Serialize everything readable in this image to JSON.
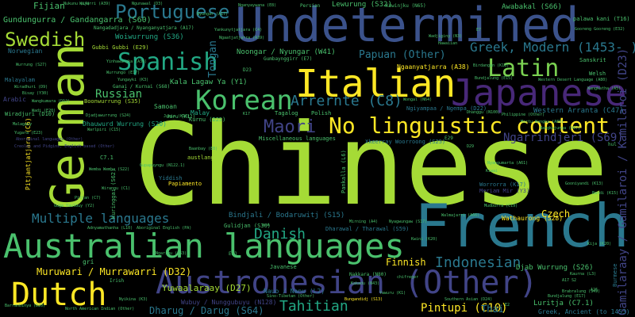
{
  "words": [
    {
      "id": "chinese",
      "text": "Chinese",
      "color": "#a5db36"
    },
    {
      "id": "french",
      "text": "French",
      "color": "#2a788e"
    },
    {
      "id": "undetermined",
      "text": "Undetermined",
      "color": "#3b528b"
    },
    {
      "id": "german",
      "text": "German",
      "color": "#a5db36"
    },
    {
      "id": "italian",
      "text": "Italian",
      "color": "#fde725"
    },
    {
      "id": "japanese",
      "text": "Japanese",
      "color": "#482878"
    },
    {
      "id": "australian",
      "text": "Australian languages",
      "color": "#4ac16d"
    },
    {
      "id": "austronesian",
      "text": "Austronesian (Other)",
      "color": "#414487"
    },
    {
      "id": "dutch",
      "text": "Dutch",
      "color": "#fde725"
    },
    {
      "id": "korean",
      "text": "Korean",
      "color": "#4ac16d"
    },
    {
      "id": "spanish",
      "text": "Spanish",
      "color": "#22a884"
    },
    {
      "id": "nolingu",
      "text": "No linguistic content",
      "color": "#fde725"
    },
    {
      "id": "latin",
      "text": "Latin",
      "color": "#7ad151"
    },
    {
      "id": "swedish",
      "text": "Swedish",
      "color": "#a5db36"
    },
    {
      "id": "portuguese",
      "text": "Portuguese",
      "color": "#2a788e"
    },
    {
      "id": "arrernte",
      "text": "Arrernte (C8)",
      "color": "#2a788e"
    },
    {
      "id": "maori",
      "text": "Maori",
      "color": "#414487"
    },
    {
      "id": "greek",
      "text": "Greek, Modern (1453- )",
      "color": "#2a788e"
    },
    {
      "id": "danish",
      "text": "Danish",
      "color": "#22a884"
    },
    {
      "id": "indonesian",
      "text": "Indonesian",
      "color": "#2a788e"
    },
    {
      "id": "tahitian",
      "text": "Tahitian",
      "color": "#22a884"
    },
    {
      "id": "multiple",
      "text": "Multiple languages",
      "color": "#2a788e"
    },
    {
      "id": "pintupi",
      "text": "Pintupi (C10)",
      "color": "#fde725"
    },
    {
      "id": "papuan",
      "text": "Papuan (Other)",
      "color": "#2a788e"
    },
    {
      "id": "russian",
      "text": "Russian",
      "color": "#4ac16d"
    },
    {
      "id": "ngarrindjeri",
      "text": "Ngarrindjeri (S69)",
      "color": "#414487"
    },
    {
      "id": "gamilaraay",
      "text": "Gamilaraay / Gamilaroi / Kamilaroi (D23)",
      "color": "#414487"
    },
    {
      "id": "muruwari",
      "text": "Muruwari / Murrawarri (D32)",
      "color": "#fde725"
    },
    {
      "id": "dharug",
      "text": "Dharug / Darug (S64)",
      "color": "#2a788e"
    },
    {
      "id": "finnish",
      "text": "Finnish",
      "color": "#fde725"
    },
    {
      "id": "czech",
      "text": "Czech",
      "color": "#fde725"
    },
    {
      "id": "thai",
      "text": "Thai",
      "color": "#2a788e"
    },
    {
      "id": "yuwaalaraay",
      "text": "Yuwaalaraay (D27)",
      "color": "#a5db36"
    },
    {
      "id": "tongan",
      "text": "Tongan",
      "color": "#2a788e"
    },
    {
      "id": "gundungurra",
      "text": "Gundungurra / Gandangarra (S60)",
      "color": "#4ac16d"
    },
    {
      "id": "fijian",
      "text": "Fijian",
      "color": "#4ac16d"
    },
    {
      "id": "lewurung",
      "text": "Lewurung (S32)",
      "color": "#4ac16d"
    },
    {
      "id": "awabakal",
      "text": "Awabakal (S66)",
      "color": "#4ac16d"
    },
    {
      "id": "woiwurrung",
      "text": "Woiwurrung (S36)",
      "color": "#22a884"
    },
    {
      "id": "noongar",
      "text": "Noongar / Nyungar (W41)",
      "color": "#4ac16d"
    },
    {
      "id": "kalalagaw",
      "text": "Kala Lagaw Ya (Y1)",
      "color": "#4ac16d"
    },
    {
      "id": "ngaanyatjarra",
      "text": "Ngaanyatjarra (A38)",
      "color": "#fde725"
    },
    {
      "id": "bindjali",
      "text": "Bindjali / Bodaruwitj (S15)",
      "color": "#2a788e"
    },
    {
      "id": "dhauwurd",
      "text": "Dhauwurd Wurrung (S20)",
      "color": "#22a884"
    },
    {
      "id": "westarr",
      "text": "Western Arranta (C47)",
      "color": "#2a788e"
    },
    {
      "id": "djab",
      "text": "Djab Wurrung (S26)",
      "color": "#4ac16d"
    },
    {
      "id": "luritja",
      "text": "Luritja (C7.1)",
      "color": "#4ac16d"
    },
    {
      "id": "greekanc",
      "text": "Greek, Ancient (to 1453)",
      "color": "#2a788e"
    },
    {
      "id": "wathaurong",
      "text": "Wathaurong (S28)",
      "color": "#fde725"
    },
    {
      "id": "nauo",
      "text": "Nauo / Nanu (L2)",
      "color": "#2a788e"
    },
    {
      "id": "wubuy",
      "text": "Wubuy / Nunggubuyu (N128)",
      "color": "#414487"
    },
    {
      "id": "samoan",
      "text": "Samoan",
      "color": "#4ac16d"
    },
    {
      "id": "malay",
      "text": "Malay",
      "color": "#22a884"
    },
    {
      "id": "tagalog",
      "text": "Tagalog",
      "color": "#4ac16d"
    },
    {
      "id": "polish",
      "text": "Polish",
      "color": "#4ac16d"
    },
    {
      "id": "sanskrit",
      "text": "Sanskrit",
      "color": "#4ac16d"
    },
    {
      "id": "welsh",
      "text": "Welsh",
      "color": "#4ac16d"
    },
    {
      "id": "yiddish",
      "text": "Yiddish",
      "color": "#2a788e"
    },
    {
      "id": "papiamento",
      "text": "Papiamento",
      "color": "#fde725"
    },
    {
      "id": "kurnu",
      "text": "Kurnu (D25)",
      "color": "#4ac16d"
    },
    {
      "id": "austlang",
      "text": "austlang",
      "color": "#a5db36"
    },
    {
      "id": "miscl",
      "text": "Miscellaneous languages",
      "color": "#4ac16d"
    },
    {
      "id": "boonwurrung",
      "text": "Boonwurrung (S35)",
      "color": "#a5db36"
    },
    {
      "id": "pitjant",
      "text": "Pitjantjatjara (C6)",
      "color": "#fde725"
    },
    {
      "id": "kuringgai",
      "text": "Kuringgai (S62)",
      "color": "#4ac16d"
    },
    {
      "id": "burmese",
      "text": "Burmese",
      "color": "#2a788e"
    },
    {
      "id": "pankalla",
      "text": "Pankalla (L6)",
      "color": "#4ac16d"
    },
    {
      "id": "gulidjan",
      "text": "Gulidjan (S30)",
      "color": "#4ac16d"
    },
    {
      "id": "dharawal",
      "text": "Dharawal / Tharawal (S59)",
      "color": "#2a788e"
    },
    {
      "id": "xkeerray",
      "text": "Xkeerray Woorroong (S25)",
      "color": "#2a788e"
    },
    {
      "id": "worrorra",
      "text": "Worrorra (K17)",
      "color": "#2a788e"
    },
    {
      "id": "meriammir",
      "text": "Meriam Mir (Y3)",
      "color": "#414487"
    },
    {
      "id": "gumbay",
      "text": "Gumbaynggirr (E7)",
      "color": "#4ac16d"
    },
    {
      "id": "gubbi",
      "text": "Gubbi Gubbi (E29)",
      "color": "#a5db36"
    },
    {
      "id": "ganai",
      "text": "Ganai / Kurnai (S68)",
      "color": "#4ac16d"
    },
    {
      "id": "jaru",
      "text": "Jaru (K12)",
      "color": "#4ac16d"
    },
    {
      "id": "welsh2",
      "text": "Western Desert Language (A80)",
      "color": "#4ac16d"
    },
    {
      "id": "nyangumarta",
      "text": "Nyangumarta (A61)",
      "color": "#4ac16d"
    },
    {
      "id": "persian",
      "text": "Persian",
      "color": "#4ac16d"
    },
    {
      "id": "kuwinjku",
      "text": "Kuwinjku (N65)",
      "color": "#4ac16d"
    },
    {
      "id": "nganyaywana",
      "text": "Nganyaywana (E8)",
      "color": "#4ac16d"
    },
    {
      "id": "nangada",
      "text": "Nangadadjara / Nyanganyatjara (A17)",
      "color": "#4ac16d"
    },
    {
      "id": "palawakani",
      "text": "palawa kani (T16)",
      "color": "#4ac16d"
    },
    {
      "id": "gooreng",
      "text": "Gooreng Gooreng (E32)",
      "color": "#4ac16d"
    },
    {
      "id": "norwegian",
      "text": "Norwegian",
      "color": "#2a788e"
    },
    {
      "id": "malayalam",
      "text": "Malayalam",
      "color": "#2a788e"
    },
    {
      "id": "bisyay",
      "text": "Bisay (Y30)",
      "color": "#4ac16d"
    },
    {
      "id": "wiradjuri",
      "text": "Wiradjuri (D10)",
      "color": "#4ac16d"
    },
    {
      "id": "wurrungo",
      "text": "Wurrungo (E17)",
      "color": "#4ac16d"
    },
    {
      "id": "yungayki",
      "text": "Yungayki (K3)",
      "color": "#4ac16d"
    },
    {
      "id": "bundjalung",
      "text": "Bundjalung (E15)",
      "color": "#4ac16d"
    },
    {
      "id": "wongal",
      "text": "Wongal (N64)",
      "color": "#4ac16d"
    },
    {
      "id": "ngiyampaa",
      "text": "Ngiyampaa / Ngempa (D22)",
      "color": "#2a788e"
    },
    {
      "id": "philippine",
      "text": "Philippine (Other)",
      "color": "#4ac16d"
    },
    {
      "id": "birdangan",
      "text": "Birdangan (K18)",
      "color": "#4ac16d"
    },
    {
      "id": "adnyamathanha",
      "text": "Adnyamathanha (L10)",
      "color": "#4ac16d"
    },
    {
      "id": "ababoriginal",
      "text": "Aboriginal English (PA)",
      "color": "#4ac16d"
    },
    {
      "id": "gugaduy",
      "text": "Guga Yaulbuy (Y2)",
      "color": "#4ac16d"
    },
    {
      "id": "mirning",
      "text": "Mirning (A4)",
      "color": "#4ac16d"
    },
    {
      "id": "ngarrawal",
      "text": "Nyagwungaw (S17)",
      "color": "#4ac16d"
    },
    {
      "id": "southernasian",
      "text": "Southern Asian (D24)",
      "color": "#4ac16d"
    },
    {
      "id": "nthamerindian",
      "text": "North American Indian (Other)",
      "color": "#4ac16d"
    },
    {
      "id": "barranbinya",
      "text": "Barranbinya (D20)",
      "color": "#4ac16d"
    },
    {
      "id": "sinotibet",
      "text": "Sino-Tibetan (Other)",
      "color": "#4ac16d"
    },
    {
      "id": "javanese",
      "text": "Javanese",
      "color": "#4ac16d"
    },
    {
      "id": "nekkara",
      "text": "Nakkara (N80)",
      "color": "#4ac16d"
    },
    {
      "id": "kakadu",
      "text": "Kakadu (N43)",
      "color": "#4ac16d"
    },
    {
      "id": "gupapuyngu",
      "text": "Gupapuyngu (N122.1)",
      "color": "#4ac16d"
    },
    {
      "id": "baanbay",
      "text": "Baanbay (E8)",
      "color": "#4ac16d"
    },
    {
      "id": "wirangu",
      "text": "Wirangu (C1)",
      "color": "#4ac16d"
    },
    {
      "id": "irish",
      "text": "Irish",
      "color": "#4ac16d"
    },
    {
      "id": "bundjali",
      "text": "Bungandidj (S13)",
      "color": "#fde725"
    },
    {
      "id": "kiwai",
      "text": "Kiwai",
      "color": "#4ac16d"
    },
    {
      "id": "hul",
      "text": "hul",
      "color": "#4ac16d"
    },
    {
      "id": "arabic",
      "text": "Arabic",
      "color": "#414487"
    },
    {
      "id": "d23",
      "text": "D23",
      "color": "#4ac16d"
    },
    {
      "id": "e29",
      "text": "E29",
      "color": "#4ac16d"
    },
    {
      "id": "e21",
      "text": "E21",
      "color": "#4ac16d"
    },
    {
      "id": "k17",
      "text": "K17",
      "color": "#4ac16d"
    },
    {
      "id": "c71",
      "text": "C7.1",
      "color": "#4ac16d"
    },
    {
      "id": "e7",
      "text": "E7",
      "color": "#4ac16d"
    },
    {
      "id": "d29",
      "text": "D29",
      "color": "#4ac16d"
    },
    {
      "id": "e2",
      "text": "E2",
      "color": "#4ac16d"
    },
    {
      "id": "ua",
      "text": "u-a",
      "color": "#4ac16d"
    },
    {
      "id": "gri",
      "text": "gri",
      "color": "#4ac16d"
    },
    {
      "id": "a17",
      "text": "A17 S2",
      "color": "#4ac16d"
    },
    {
      "id": "a26",
      "text": "A26",
      "color": "#4ac16d"
    },
    {
      "id": "bardi",
      "text": "Bardi (K15)",
      "color": "#4ac16d"
    },
    {
      "id": "kaurna",
      "text": "Kaurna (L3)",
      "color": "#4ac16d"
    },
    {
      "id": "brabralung",
      "text": "Brabralung (S49)",
      "color": "#4ac16d"
    },
    {
      "id": "hawaiian",
      "text": "Hawaiian",
      "color": "#4ac16d"
    },
    {
      "id": "jamie",
      "text": "Jamie (K16)",
      "color": "#4ac16d"
    },
    {
      "id": "mudburra",
      "text": "Mudburra (C19)",
      "color": "#4ac16d"
    },
    {
      "id": "dhangu",
      "text": "Dhanggu (N100)",
      "color": "#4ac16d"
    },
    {
      "id": "wajarri",
      "text": "Wajarri (A39)",
      "color": "#4ac16d"
    },
    {
      "id": "wadi",
      "text": "Wadi (E20)",
      "color": "#4ac16d"
    },
    {
      "id": "ngunnawal",
      "text": "Ngunawal (D3)",
      "color": "#4ac16d"
    },
    {
      "id": "nyunga",
      "text": "Nyungar (A17)",
      "color": "#4ac16d"
    },
    {
      "id": "chifreger",
      "text": "chifreger",
      "color": "#4ac16d"
    },
    {
      "id": "nukunu",
      "text": "Nukunu (L4)",
      "color": "#4ac16d"
    },
    {
      "id": "bundj",
      "text": "Bundjalung (E17)",
      "color": "#4ac16d"
    },
    {
      "id": "wadjiginy",
      "text": "Wadjiginy (N3)",
      "color": "#4ac16d"
    },
    {
      "id": "creoles",
      "text": "Creoles and Pidgins, English-based (Other)",
      "color": "#414487"
    },
    {
      "id": "aitdisi",
      "text": "Aboriginal languages (Other)",
      "color": "#414487"
    },
    {
      "id": "pitjantred",
      "text": "Pitjan (C7)",
      "color": "#4ac16d"
    },
    {
      "id": "malagasy",
      "text": "Malagasy",
      "color": "#4ac16d"
    },
    {
      "id": "wanggumara",
      "text": "Wangkumara (D12)",
      "color": "#4ac16d"
    },
    {
      "id": "yugera",
      "text": "Yugara (E23)",
      "color": "#4ac16d"
    },
    {
      "id": "kamilaroi2",
      "text": "Yinhawangka (A36)",
      "color": "#4ac16d"
    },
    {
      "id": "djadjawurrung",
      "text": "Djadjawurrung (S24)",
      "color": "#4ac16d"
    },
    {
      "id": "warlpiri",
      "text": "Warlpiri (C15)",
      "color": "#4ac16d"
    },
    {
      "id": "wemba",
      "text": "Wemba Wemba (S22)",
      "color": "#4ac16d"
    },
    {
      "id": "wurrung",
      "text": "Wurrung (S27)",
      "color": "#4ac16d"
    },
    {
      "id": "wiradhuri",
      "text": "Wiradhuri (D9)",
      "color": "#4ac16d"
    },
    {
      "id": "ngarigu",
      "text": "Ngarigu (S63)",
      "color": "#4ac16d"
    },
    {
      "id": "walmajarri",
      "text": "Walmajarri (A66)",
      "color": "#4ac16d"
    },
    {
      "id": "kwini",
      "text": "Kwini (K20)",
      "color": "#4ac16d"
    },
    {
      "id": "yawuru",
      "text": "Yawuru (K1)",
      "color": "#4ac16d"
    },
    {
      "id": "nyikina",
      "text": "Nyikina (K3)",
      "color": "#4ac16d"
    },
    {
      "id": "yankuny",
      "text": "Yankunytjatjara (C4)",
      "color": "#4ac16d"
    },
    {
      "id": "ngaatjatj",
      "text": "Ngaatjatjarra (A39)",
      "color": "#4ac16d"
    },
    {
      "id": "martuwangka",
      "text": "Martu Wangka (A86)",
      "color": "#4ac16d"
    },
    {
      "id": "wangkatha",
      "text": "Wangkatha (A5)",
      "color": "#4ac16d"
    },
    {
      "id": "wangkajunga",
      "text": "Wangkajunga (A67)",
      "color": "#4ac16d"
    },
    {
      "id": "gooniyandi",
      "text": "Gooniyandi (K13)",
      "color": "#4ac16d"
    },
    {
      "id": "kija",
      "text": "Kija (K20)",
      "color": "#4ac16d"
    }
  ]
}
